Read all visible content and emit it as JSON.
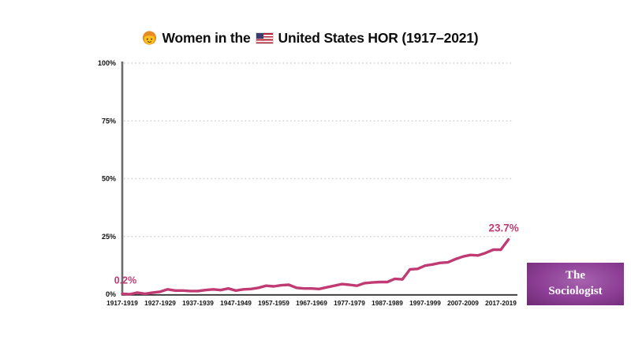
{
  "title": {
    "part1": "Women in the",
    "part2": "United States HOR (1917–2021)",
    "girl_icon": "girl-emoji",
    "flag_icon": "us-flag"
  },
  "logo": {
    "line1": "The",
    "line2": "Sociologist",
    "bg_edge_color": "#6e2a73",
    "bg_center_color": "#a763ae",
    "text_color": "#ffffff"
  },
  "chart_data": {
    "type": "line",
    "title": "Women in the United States HOR (1917–2021)",
    "xlabel": "",
    "ylabel": "",
    "ylim": [
      0,
      100
    ],
    "grid": "dotted-horizontal",
    "legend": "none",
    "x": [
      "1917-1919",
      "1919-1921",
      "1921-1923",
      "1923-1925",
      "1925-1927",
      "1927-1929",
      "1929-1931",
      "1931-1933",
      "1933-1935",
      "1935-1937",
      "1937-1939",
      "1939-1941",
      "1941-1943",
      "1943-1945",
      "1945-1947",
      "1947-1949",
      "1949-1951",
      "1951-1953",
      "1953-1955",
      "1955-1957",
      "1957-1959",
      "1959-1961",
      "1961-1963",
      "1963-1965",
      "1965-1967",
      "1967-1969",
      "1969-1971",
      "1971-1973",
      "1973-1975",
      "1975-1977",
      "1977-1979",
      "1979-1981",
      "1981-1983",
      "1983-1985",
      "1985-1987",
      "1987-1989",
      "1989-1991",
      "1991-1993",
      "1993-1995",
      "1995-1997",
      "1997-1999",
      "1999-2001",
      "2001-2003",
      "2003-2005",
      "2005-2007",
      "2007-2009",
      "2009-2011",
      "2011-2013",
      "2013-2015",
      "2015-2017",
      "2017-2019",
      "2019-2021"
    ],
    "values": [
      0.2,
      0.0,
      0.7,
      0.2,
      0.7,
      1.1,
      2.1,
      1.6,
      1.6,
      1.4,
      1.4,
      1.8,
      2.1,
      1.8,
      2.5,
      1.6,
      2.1,
      2.3,
      2.8,
      3.7,
      3.4,
      3.9,
      4.1,
      2.8,
      2.5,
      2.5,
      2.3,
      3.0,
      3.7,
      4.4,
      4.1,
      3.7,
      4.8,
      5.1,
      5.3,
      5.3,
      6.7,
      6.4,
      10.8,
      11.0,
      12.4,
      12.9,
      13.6,
      13.8,
      15.2,
      16.3,
      17.0,
      16.8,
      17.9,
      19.3,
      19.3,
      23.7
    ],
    "x_tick_indices": [
      0,
      5,
      10,
      15,
      20,
      25,
      30,
      35,
      40,
      45,
      50
    ],
    "x_tick_labels": [
      "1917-1919",
      "1927-1929",
      "1937-1939",
      "1947-1949",
      "1957-1959",
      "1967-1969",
      "1977-1979",
      "1987-1989",
      "1997-1999",
      "2007-2009",
      "2017-2019"
    ],
    "y_ticks": [
      0,
      25,
      50,
      75,
      100
    ],
    "y_tick_labels": [
      "0%",
      "25%",
      "50%",
      "75%",
      "100%"
    ],
    "annotations": [
      {
        "index": 0,
        "label": "0.2%"
      },
      {
        "index": 51,
        "label": "23.7%"
      }
    ],
    "colors": {
      "line": "#c03b74",
      "annotation_text": "#c03b74",
      "axis_x": "#333333",
      "axis_y": "#6b6b6b",
      "grid": "#d0d0d0",
      "tick_text": "#111111"
    }
  }
}
